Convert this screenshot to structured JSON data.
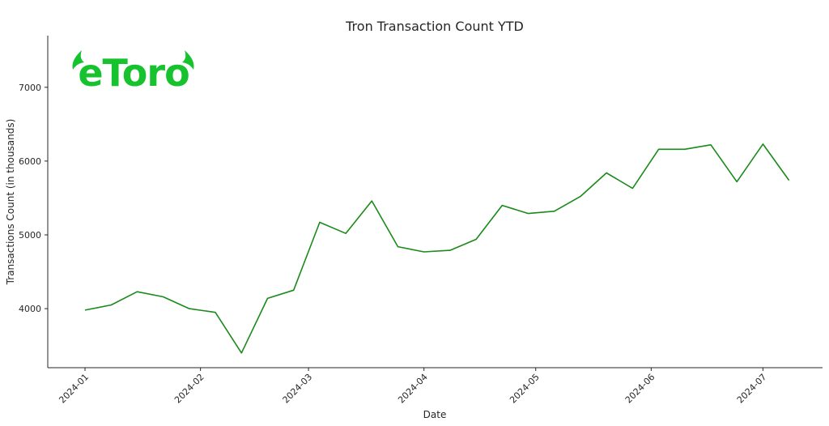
{
  "logo": {
    "text": "eToro",
    "color": "#16c22e"
  },
  "chart_data": {
    "type": "line",
    "title": "Tron Transaction Count YTD",
    "xlabel": "Date",
    "ylabel": "Transactions Count (in thousands)",
    "x_ticks": [
      "2024-01",
      "2024-02",
      "2024-03",
      "2024-04",
      "2024-05",
      "2024-06",
      "2024-07"
    ],
    "y_ticks": [
      4000,
      5000,
      6000,
      7000
    ],
    "xlim": [
      "2023-12-22",
      "2024-07-17"
    ],
    "ylim": [
      3200,
      7700
    ],
    "grid": false,
    "line_color": "#1a8a1a",
    "series": [
      {
        "x": [
          "2024-01-01",
          "2024-01-08",
          "2024-01-15",
          "2024-01-22",
          "2024-01-29",
          "2024-02-05",
          "2024-02-12",
          "2024-02-19",
          "2024-02-26",
          "2024-03-04",
          "2024-03-11",
          "2024-03-18",
          "2024-03-25",
          "2024-04-01",
          "2024-04-08",
          "2024-04-15",
          "2024-04-22",
          "2024-04-29",
          "2024-05-06",
          "2024-05-13",
          "2024-05-20",
          "2024-05-27",
          "2024-06-03",
          "2024-06-10",
          "2024-06-17",
          "2024-06-24",
          "2024-07-01",
          "2024-07-08"
        ],
        "values": [
          3980,
          4050,
          4230,
          4160,
          4000,
          3950,
          3400,
          4140,
          4250,
          5170,
          5020,
          5460,
          4840,
          4770,
          4790,
          4940,
          5400,
          5290,
          5320,
          5520,
          5840,
          5630,
          6160,
          6160,
          6220,
          5720,
          6230,
          5740
        ]
      }
    ]
  }
}
